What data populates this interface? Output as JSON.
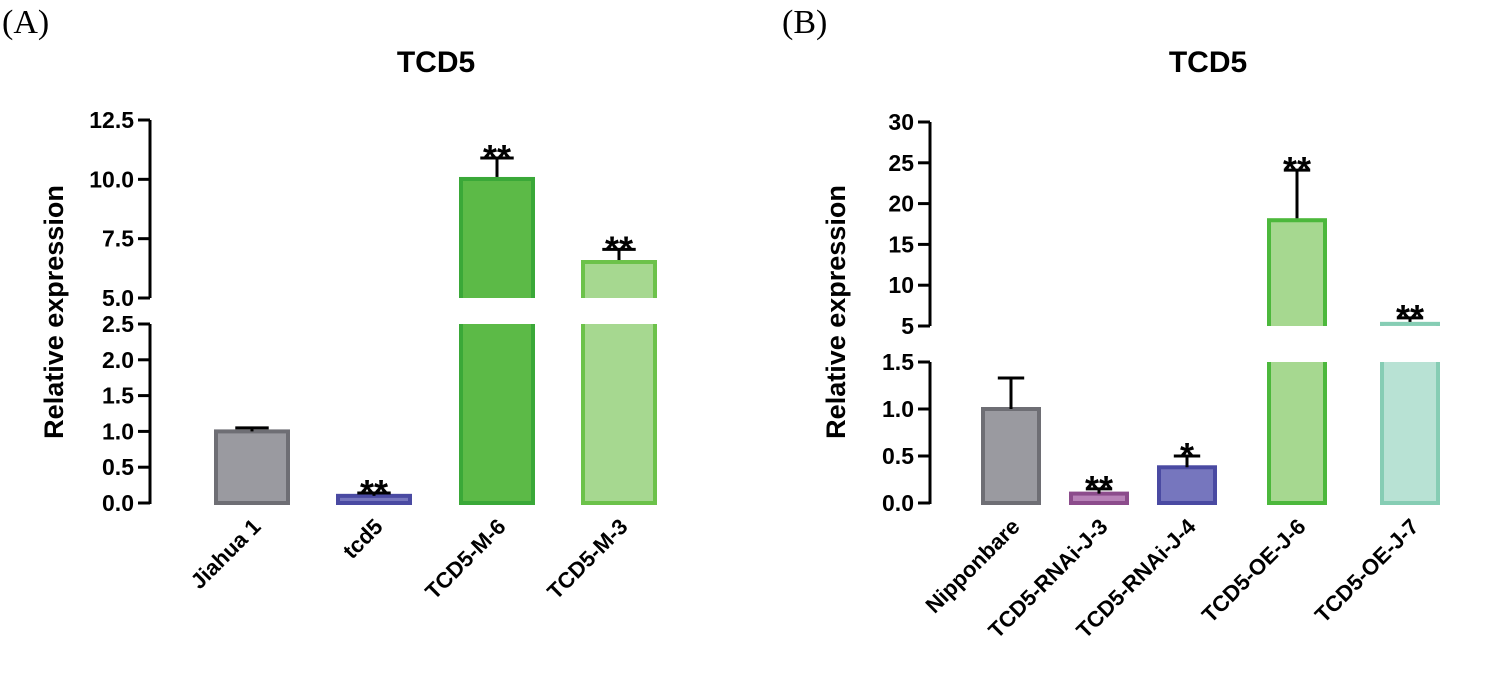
{
  "chart_data": [
    {
      "panel_label": "(A)",
      "type": "bar",
      "title": "TCD5",
      "xlabel": "",
      "ylabel": "Relative expression",
      "y_axis_break": {
        "lower_range": [
          0,
          2.5
        ],
        "upper_range": [
          5,
          12.5
        ]
      },
      "lower_ticks": [
        "0.0",
        "0.5",
        "1.0",
        "1.5",
        "2.0",
        "2.5"
      ],
      "upper_ticks": [
        "5.0",
        "7.5",
        "10.0",
        "12.5"
      ],
      "categories": [
        "Jiahua 1",
        "tcd5",
        "TCD5-M-6",
        "TCD5-M-3"
      ],
      "values": [
        1.0,
        0.1,
        10.1,
        6.6
      ],
      "errors": [
        0.05,
        0.04,
        0.8,
        0.45
      ],
      "significance": [
        "",
        "**",
        "**",
        "**"
      ],
      "colors": [
        "#9a9aa0",
        "#7676be",
        "#5cba47",
        "#a6d890"
      ],
      "edge_colors": [
        "#6e6e74",
        "#4a4aa2",
        "#3aa838",
        "#6cc24a"
      ]
    },
    {
      "panel_label": "(B)",
      "type": "bar",
      "title": "TCD5",
      "xlabel": "",
      "ylabel": "Relative expression",
      "y_axis_break": {
        "lower_range": [
          0,
          1.5
        ],
        "upper_range": [
          5,
          30
        ]
      },
      "lower_ticks": [
        "0.0",
        "0.5",
        "1.0",
        "1.5"
      ],
      "upper_ticks": [
        "5",
        "10",
        "15",
        "20",
        "25",
        "30"
      ],
      "categories": [
        "Nipponbare",
        "TCD5-RNAi-J-3",
        "TCD5-RNAi-J-4",
        "TCD5-OE-J-6",
        "TCD5-OE-J-7"
      ],
      "values": [
        1.0,
        0.1,
        0.38,
        18.2,
        5.5
      ],
      "errors": [
        0.33,
        0.05,
        0.12,
        5.9,
        0.5
      ],
      "significance": [
        "",
        "**",
        "*",
        "**",
        "**"
      ],
      "colors": [
        "#9a9aa0",
        "#b882b8",
        "#7676be",
        "#a6d890",
        "#b8e2d4"
      ],
      "edge_colors": [
        "#6e6e74",
        "#8c4c8c",
        "#4a4aa2",
        "#4cb83c",
        "#86cdb4"
      ]
    }
  ]
}
